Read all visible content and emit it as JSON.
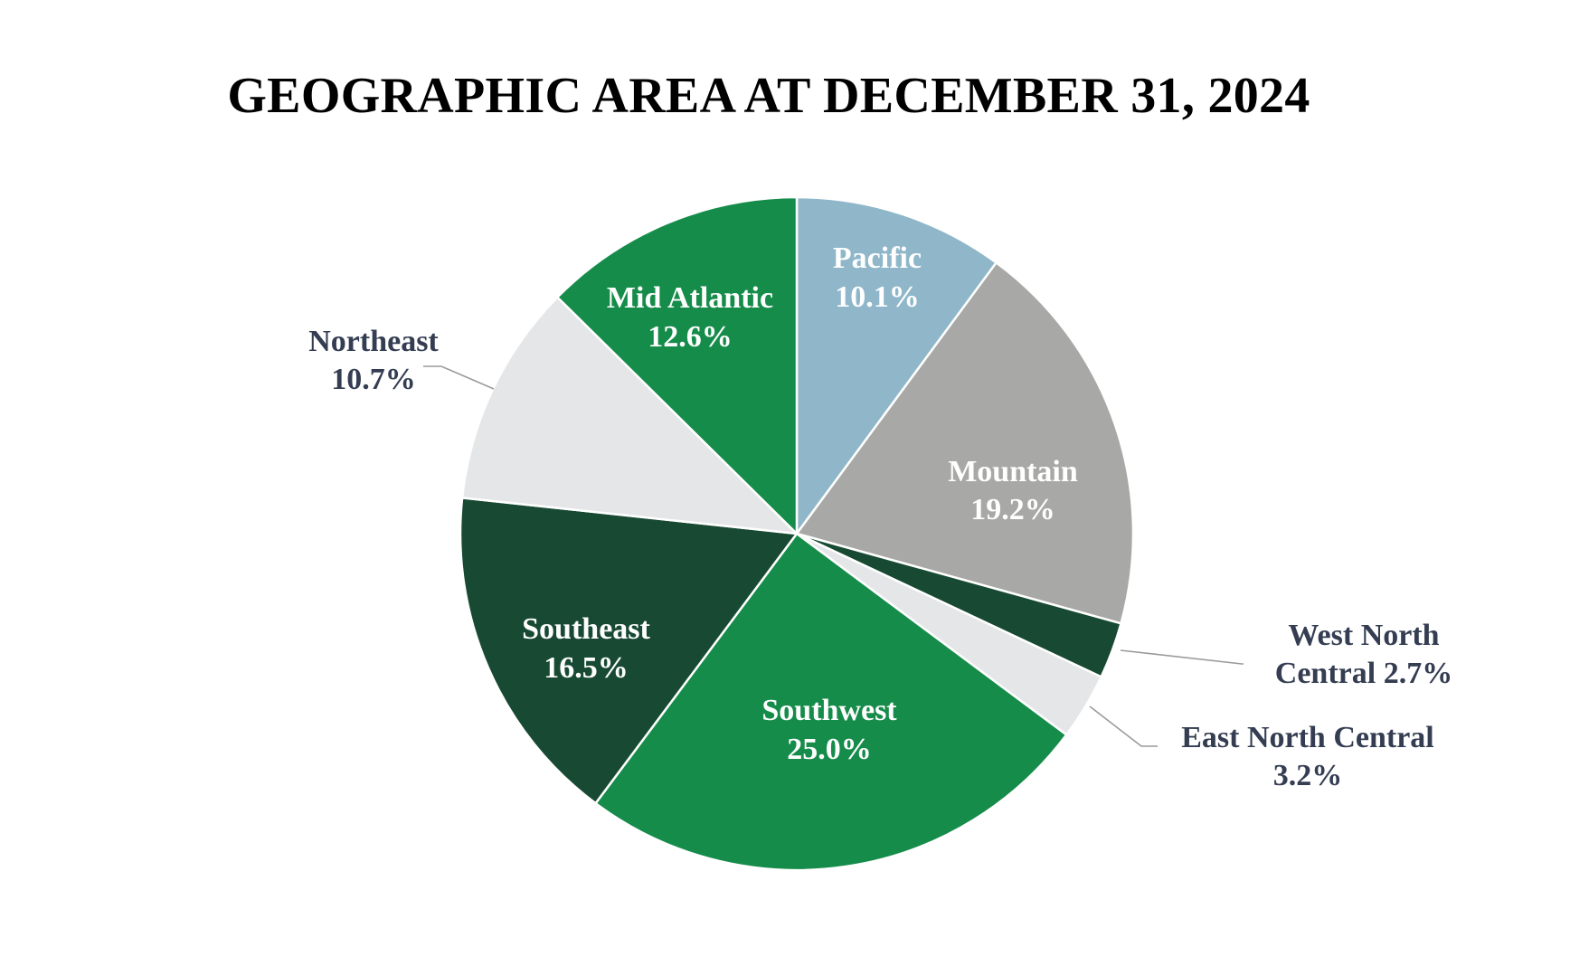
{
  "chart_data": {
    "type": "pie",
    "title": "GEOGRAPHIC AREA AT DECEMBER 31, 2024",
    "unit": "%",
    "slices": [
      {
        "name": "Pacific",
        "value": 10.1,
        "label": "10.1%",
        "color": "#8fb7c9",
        "label_color": "#ffffff"
      },
      {
        "name": "Mountain",
        "value": 19.2,
        "label": "19.2%",
        "color": "#a8a8a6",
        "label_color": "#ffffff"
      },
      {
        "name": "West North Central",
        "value": 2.7,
        "label": "2.7%",
        "color": "#184a33",
        "label_color": "#343d52"
      },
      {
        "name": "East North Central",
        "value": 3.2,
        "label": "3.2%",
        "color": "#e4e6e7",
        "label_color": "#343d52"
      },
      {
        "name": "Southwest",
        "value": 25.0,
        "label": "25.0%",
        "color": "#168c4a",
        "label_color": "#ffffff"
      },
      {
        "name": "Southeast",
        "value": 16.5,
        "label": "16.5%",
        "color": "#184a33",
        "label_color": "#ffffff"
      },
      {
        "name": "Northeast",
        "value": 10.7,
        "label": "10.7%",
        "color": "#e4e6e7",
        "label_color": "#343d52"
      },
      {
        "name": "Mid Atlantic",
        "value": 12.6,
        "label": "12.6%",
        "color": "#168c4a",
        "label_color": "#ffffff"
      }
    ],
    "legend": "none",
    "data_labels": "on-slice and outside with leader lines"
  }
}
